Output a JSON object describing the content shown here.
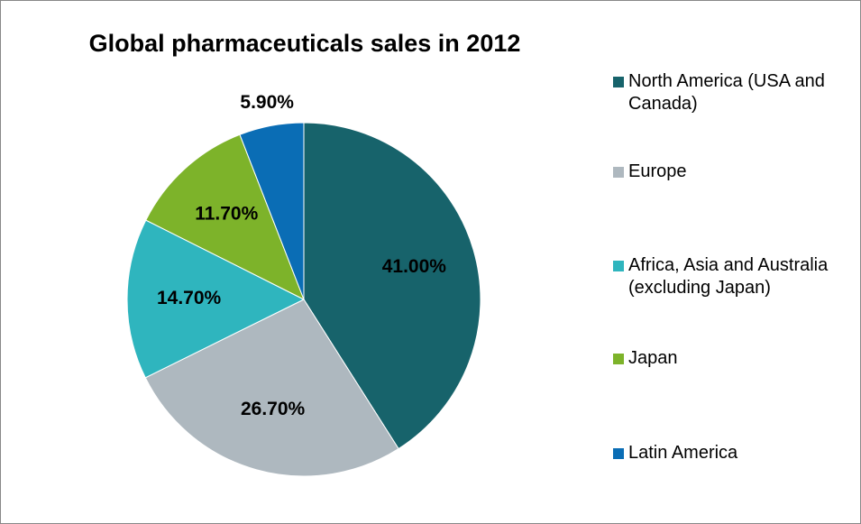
{
  "chart_data": {
    "type": "pie",
    "title": "Global pharmaceuticals sales in 2012",
    "categories": [
      "North America (USA and Canada)",
      "Europe",
      "Africa, Asia and Australia (excluding Japan)",
      "Japan",
      "Latin America"
    ],
    "values": [
      41.0,
      26.7,
      14.7,
      11.7,
      5.9
    ],
    "value_labels": [
      "41.00%",
      "26.70%",
      "14.70%",
      "11.70%",
      "5.90%"
    ],
    "colors": [
      "#17636b",
      "#aeb8bf",
      "#2fb5be",
      "#7db32a",
      "#0a6db5"
    ],
    "legend": "right"
  }
}
